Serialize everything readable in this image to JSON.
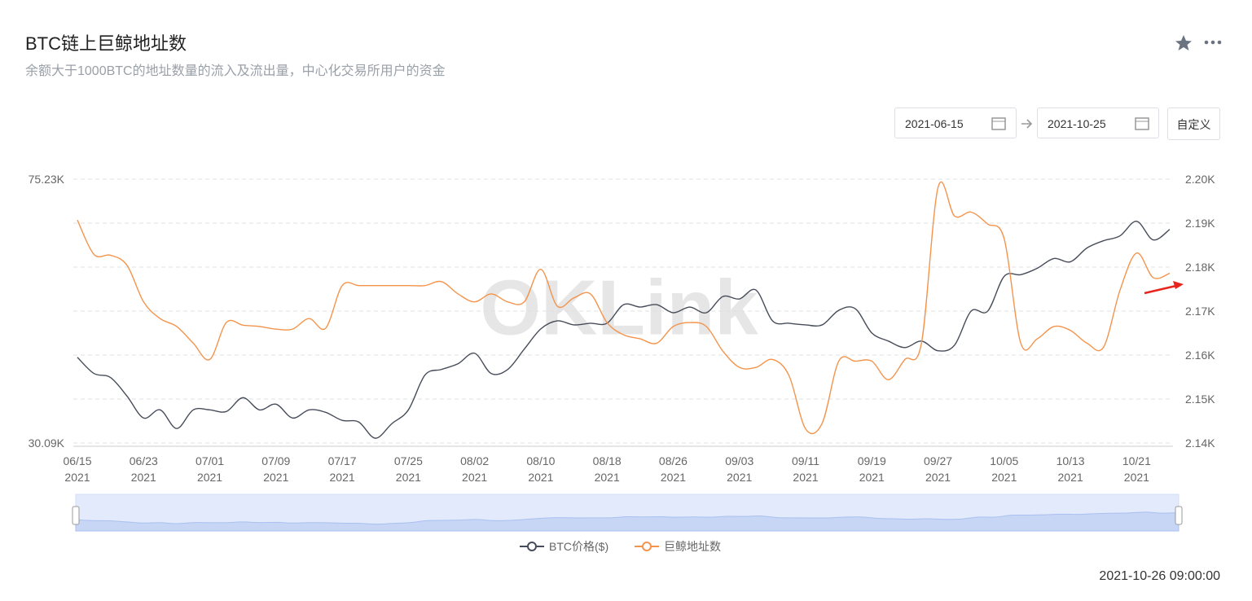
{
  "header": {
    "title": "BTC链上巨鲸地址数",
    "subtitle": "余额大于1000BTC的地址数量的流入及流出量，中心化交易所用户的资金"
  },
  "controls": {
    "start_date": "2021-06-15",
    "end_date": "2021-10-25",
    "custom_button": "自定义"
  },
  "watermark": "OKLink",
  "timestamp": "2021-10-26 09:00:00",
  "chart_data": {
    "type": "line",
    "categories": [
      [
        "06/15",
        "2021"
      ],
      null,
      null,
      null,
      [
        "06/23",
        "2021"
      ],
      null,
      null,
      null,
      [
        "07/01",
        "2021"
      ],
      null,
      null,
      null,
      [
        "07/09",
        "2021"
      ],
      null,
      null,
      null,
      [
        "07/17",
        "2021"
      ],
      null,
      null,
      null,
      [
        "07/25",
        "2021"
      ],
      null,
      null,
      null,
      [
        "08/02",
        "2021"
      ],
      null,
      null,
      null,
      [
        "08/10",
        "2021"
      ],
      null,
      null,
      null,
      [
        "08/18",
        "2021"
      ],
      null,
      null,
      null,
      [
        "08/26",
        "2021"
      ],
      null,
      null,
      null,
      [
        "09/03",
        "2021"
      ],
      null,
      null,
      null,
      [
        "09/11",
        "2021"
      ],
      null,
      null,
      null,
      [
        "09/19",
        "2021"
      ],
      null,
      null,
      null,
      [
        "09/27",
        "2021"
      ],
      null,
      null,
      null,
      [
        "10/05",
        "2021"
      ],
      null,
      null,
      null,
      [
        "10/13",
        "2021"
      ],
      null,
      null,
      null,
      [
        "10/21",
        "2021"
      ],
      null,
      null
    ],
    "series": [
      {
        "name": "BTC价格($)",
        "color": "#464c59",
        "axis": "y",
        "values": [
          44760,
          41990,
          41300,
          38110,
          34370,
          35760,
          32570,
          35760,
          35760,
          35480,
          37840,
          35760,
          36730,
          34370,
          35760,
          35340,
          33960,
          33680,
          30910,
          33400,
          35760,
          41710,
          42680,
          43650,
          45450,
          41990,
          42680,
          46150,
          49610,
          50990,
          50300,
          50580,
          50580,
          53760,
          53350,
          53760,
          52380,
          53350,
          52380,
          55150,
          54740,
          56260,
          50990,
          50580,
          50300,
          50300,
          52790,
          53070,
          48920,
          47530,
          46420,
          47530,
          45870,
          46840,
          52650,
          52650,
          58610,
          58890,
          59990,
          61660,
          61100,
          63460,
          64700,
          65540,
          68030,
          64840,
          66640
        ]
      },
      {
        "name": "巨鲸地址数",
        "color": "#f4944c",
        "axis": "y2",
        "values": [
          2190.7,
          2182.9,
          2182.7,
          2180.4,
          2172.1,
          2168.3,
          2166.5,
          2162.7,
          2159.0,
          2167.4,
          2166.8,
          2166.5,
          2165.9,
          2165.9,
          2168.3,
          2166.1,
          2175.8,
          2175.8,
          2175.8,
          2175.8,
          2175.8,
          2175.8,
          2176.7,
          2173.9,
          2172.1,
          2173.9,
          2172.1,
          2172.1,
          2179.5,
          2171.1,
          2173.0,
          2173.9,
          2167.4,
          2164.6,
          2163.7,
          2162.7,
          2166.5,
          2167.4,
          2166.5,
          2160.9,
          2157.2,
          2157.2,
          2159.0,
          2155.3,
          2143.2,
          2144.5,
          2158.6,
          2158.6,
          2158.6,
          2154.4,
          2159.0,
          2162.7,
          2198.1,
          2191.6,
          2192.5,
          2189.8,
          2186.4,
          2162.7,
          2163.7,
          2166.5,
          2165.6,
          2162.7,
          2161.8,
          2174.8,
          2183.2,
          2177.6,
          2178.6
        ]
      }
    ],
    "ylim": [
      30090,
      75230
    ],
    "yticks": [
      {
        "value": 75230,
        "label": "75.23K"
      },
      {
        "value": 30090,
        "label": "30.09K"
      }
    ],
    "y2lim": [
      2140,
      2200
    ],
    "y2ticks": [
      {
        "value": 2200,
        "label": "2.20K"
      },
      {
        "value": 2190,
        "label": "2.19K"
      },
      {
        "value": 2180,
        "label": "2.18K"
      },
      {
        "value": 2170,
        "label": "2.17K"
      },
      {
        "value": 2160,
        "label": "2.16K"
      },
      {
        "value": 2150,
        "label": "2.15K"
      },
      {
        "value": 2140,
        "label": "2.14K"
      }
    ],
    "grid": true,
    "legend": "bottom"
  }
}
